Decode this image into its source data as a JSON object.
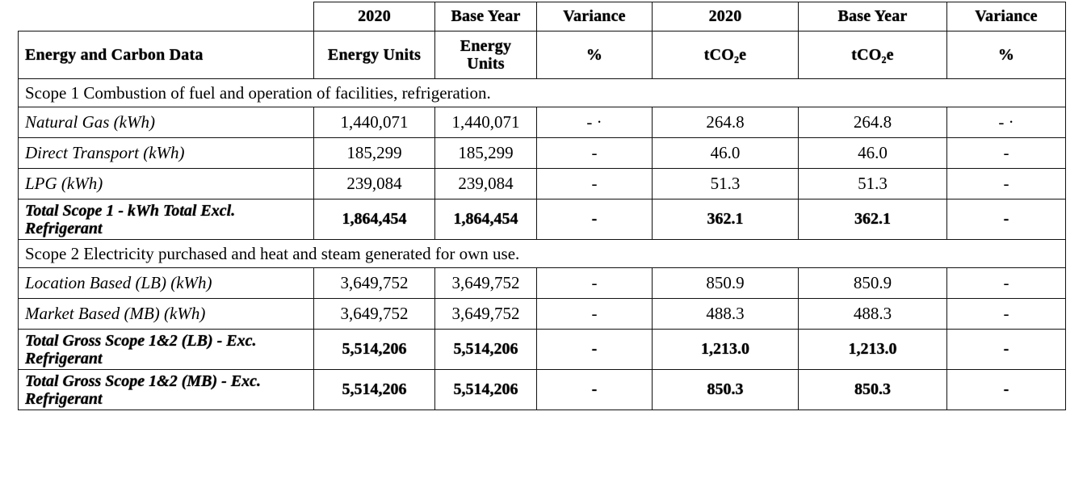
{
  "header_years": [
    "2020",
    "Base Year",
    "Variance",
    "2020",
    "Base Year",
    "Variance"
  ],
  "header_units": {
    "title": "Energy and Carbon Data",
    "cols": [
      "Energy Units",
      "Energy Units",
      "%",
      "tCO₂e",
      "tCO₂e",
      "%"
    ]
  },
  "rows": [
    {
      "kind": "section",
      "text": "Scope 1 Combustion of fuel and operation of facilities, refrigeration."
    },
    {
      "kind": "data",
      "label": "Natural Gas (kWh)",
      "values": [
        "1,440,071",
        "1,440,071",
        "- ·",
        "264.8",
        "264.8",
        "- ·"
      ]
    },
    {
      "kind": "data",
      "label": "Direct Transport (kWh)",
      "values": [
        "185,299",
        "185,299",
        "-",
        "46.0",
        "46.0",
        "-"
      ]
    },
    {
      "kind": "data",
      "label": "LPG (kWh)",
      "values": [
        "239,084",
        "239,084",
        "-",
        "51.3",
        "51.3",
        "-"
      ]
    },
    {
      "kind": "total",
      "label": "Total Scope 1 - kWh Total Excl. Refrigerant",
      "values": [
        "1,864,454",
        "1,864,454",
        "-",
        "362.1",
        "362.1",
        "-"
      ]
    },
    {
      "kind": "section",
      "text": "Scope 2 Electricity purchased and heat and steam generated for own use."
    },
    {
      "kind": "data",
      "label": "Location Based (LB) (kWh)",
      "values": [
        "3,649,752",
        "3,649,752",
        "-",
        "850.9",
        "850.9",
        "-"
      ]
    },
    {
      "kind": "data",
      "label": "Market Based (MB) (kWh)",
      "values": [
        "3,649,752",
        "3,649,752",
        "-",
        "488.3",
        "488.3",
        "-"
      ]
    },
    {
      "kind": "total",
      "label": "Total Gross Scope 1&2 (LB) - Exc. Refrigerant",
      "values": [
        "5,514,206",
        "5,514,206",
        "-",
        "1,213.0",
        "1,213.0",
        "-"
      ]
    },
    {
      "kind": "total",
      "label": "Total Gross Scope 1&2 (MB) - Exc. Refrigerant",
      "values": [
        "5,514,206",
        "5,514,206",
        "-",
        "850.3",
        "850.3",
        "-"
      ]
    }
  ]
}
